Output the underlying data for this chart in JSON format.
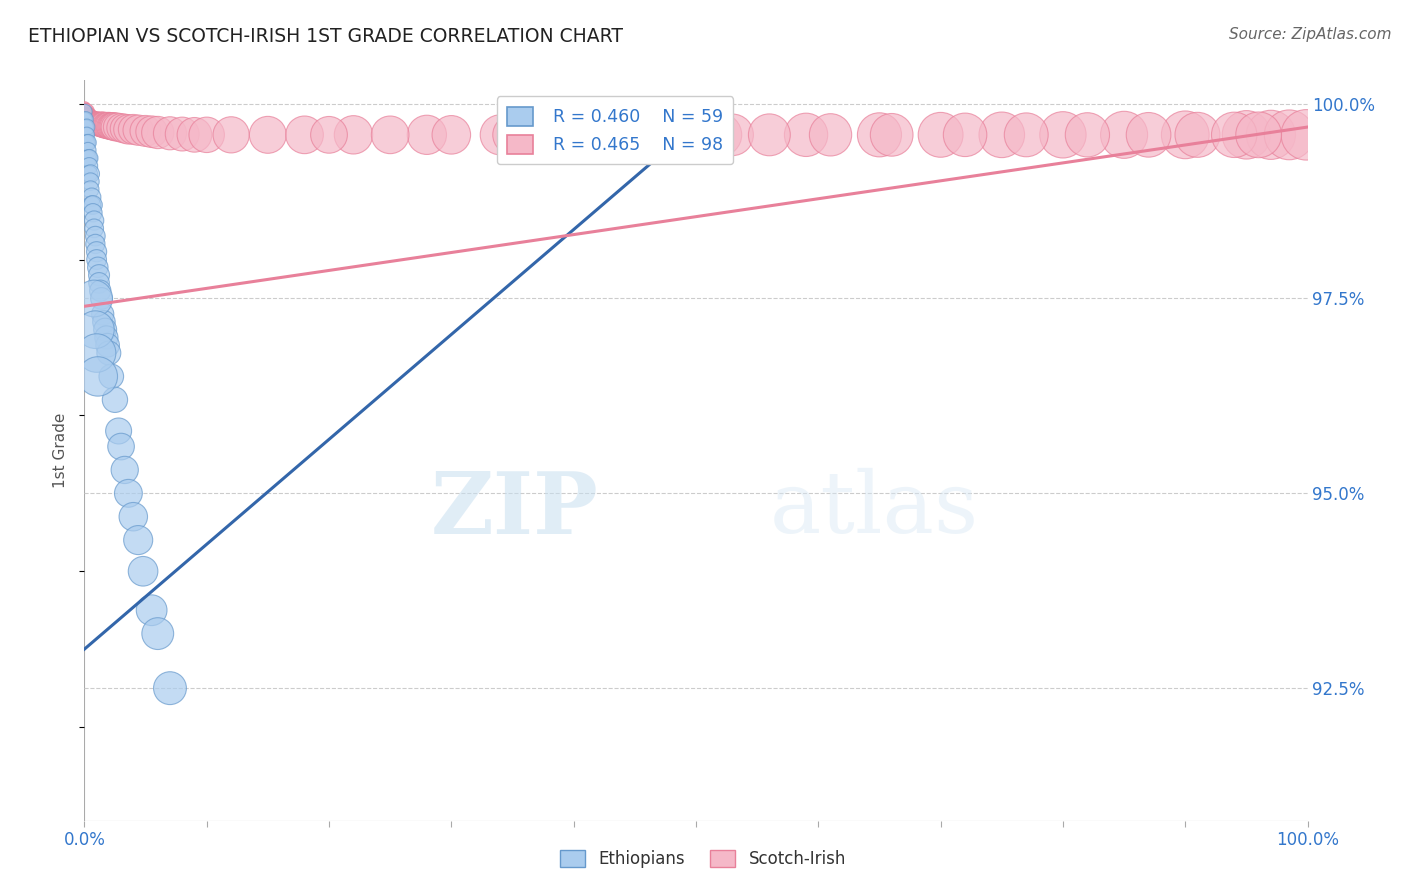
{
  "title": "ETHIOPIAN VS SCOTCH-IRISH 1ST GRADE CORRELATION CHART",
  "source": "Source: ZipAtlas.com",
  "ylabel": "1st Grade",
  "yaxis_labels": [
    "100.0%",
    "97.5%",
    "95.0%",
    "92.5%"
  ],
  "yaxis_values": [
    1.0,
    0.975,
    0.95,
    0.925
  ],
  "legend_blue_R": "R = 0.460",
  "legend_blue_N": "N = 59",
  "legend_pink_R": "R = 0.465",
  "legend_pink_N": "N = 98",
  "blue_color": "#aaccee",
  "pink_color": "#f5b8c8",
  "blue_edge": "#6699cc",
  "pink_edge": "#e8809a",
  "blue_line": "#3366aa",
  "pink_line": "#e8809a",
  "watermark_zip": "ZIP",
  "watermark_atlas": "atlas",
  "xlim": [
    0.0,
    1.0
  ],
  "ylim": [
    0.908,
    1.003
  ],
  "blue_trend_x": [
    0.0,
    0.52
  ],
  "blue_trend_y": [
    0.93,
    1.0
  ],
  "pink_trend_x": [
    0.0,
    1.0
  ],
  "pink_trend_y": [
    0.974,
    0.997
  ],
  "blue_points_x": [
    0.0005,
    0.0005,
    0.0008,
    0.001,
    0.001,
    0.001,
    0.0015,
    0.0015,
    0.002,
    0.002,
    0.002,
    0.0025,
    0.003,
    0.003,
    0.003,
    0.0035,
    0.004,
    0.004,
    0.004,
    0.005,
    0.005,
    0.005,
    0.006,
    0.006,
    0.007,
    0.007,
    0.008,
    0.008,
    0.009,
    0.009,
    0.01,
    0.01,
    0.011,
    0.012,
    0.012,
    0.013,
    0.014,
    0.015,
    0.016,
    0.017,
    0.018,
    0.019,
    0.02,
    0.022,
    0.025,
    0.028,
    0.03,
    0.033,
    0.036,
    0.04,
    0.044,
    0.048,
    0.055,
    0.06,
    0.07,
    0.008,
    0.009,
    0.01,
    0.011
  ],
  "blue_points_y": [
    0.999,
    0.998,
    0.998,
    0.998,
    0.997,
    0.996,
    0.997,
    0.996,
    0.997,
    0.996,
    0.995,
    0.995,
    0.995,
    0.994,
    0.993,
    0.993,
    0.993,
    0.992,
    0.991,
    0.991,
    0.99,
    0.989,
    0.988,
    0.987,
    0.987,
    0.986,
    0.985,
    0.984,
    0.983,
    0.982,
    0.981,
    0.98,
    0.979,
    0.978,
    0.977,
    0.976,
    0.975,
    0.973,
    0.972,
    0.971,
    0.97,
    0.969,
    0.968,
    0.965,
    0.962,
    0.958,
    0.956,
    0.953,
    0.95,
    0.947,
    0.944,
    0.94,
    0.935,
    0.932,
    0.925,
    0.975,
    0.971,
    0.968,
    0.965
  ],
  "blue_sizes": [
    30,
    25,
    28,
    35,
    30,
    28,
    32,
    30,
    38,
    35,
    32,
    36,
    40,
    38,
    35,
    42,
    45,
    42,
    40,
    48,
    45,
    43,
    50,
    48,
    52,
    50,
    55,
    52,
    57,
    55,
    60,
    58,
    62,
    65,
    63,
    67,
    70,
    73,
    75,
    78,
    80,
    83,
    85,
    90,
    95,
    100,
    105,
    110,
    115,
    120,
    125,
    130,
    140,
    150,
    160,
    200,
    210,
    220,
    230
  ],
  "pink_points_x": [
    0.0003,
    0.0005,
    0.0007,
    0.001,
    0.001,
    0.0015,
    0.0015,
    0.002,
    0.002,
    0.002,
    0.0025,
    0.003,
    0.003,
    0.003,
    0.004,
    0.004,
    0.005,
    0.005,
    0.005,
    0.006,
    0.006,
    0.007,
    0.007,
    0.008,
    0.008,
    0.009,
    0.009,
    0.01,
    0.01,
    0.011,
    0.011,
    0.012,
    0.013,
    0.013,
    0.014,
    0.015,
    0.015,
    0.016,
    0.017,
    0.018,
    0.019,
    0.02,
    0.021,
    0.022,
    0.023,
    0.024,
    0.025,
    0.027,
    0.03,
    0.033,
    0.036,
    0.04,
    0.044,
    0.05,
    0.055,
    0.06,
    0.07,
    0.08,
    0.09,
    0.1,
    0.12,
    0.15,
    0.18,
    0.22,
    0.28,
    0.34,
    0.4,
    0.46,
    0.52,
    0.59,
    0.65,
    0.7,
    0.75,
    0.8,
    0.85,
    0.9,
    0.95,
    0.97,
    0.985,
    0.999,
    0.2,
    0.25,
    0.3,
    0.35,
    0.38,
    0.42,
    0.48,
    0.53,
    0.56,
    0.61,
    0.66,
    0.72,
    0.77,
    0.82,
    0.87,
    0.91,
    0.94,
    0.96
  ],
  "pink_points_y": [
    0.9995,
    0.9993,
    0.9992,
    0.9992,
    0.999,
    0.999,
    0.9988,
    0.999,
    0.9987,
    0.9985,
    0.9985,
    0.9984,
    0.9983,
    0.9982,
    0.9982,
    0.9981,
    0.998,
    0.9979,
    0.9978,
    0.9978,
    0.9977,
    0.9977,
    0.9976,
    0.9976,
    0.9975,
    0.9975,
    0.9975,
    0.9975,
    0.9974,
    0.9974,
    0.9974,
    0.9974,
    0.9974,
    0.9973,
    0.9973,
    0.9973,
    0.9973,
    0.9973,
    0.9972,
    0.9972,
    0.9972,
    0.9972,
    0.9971,
    0.9971,
    0.9971,
    0.9971,
    0.997,
    0.997,
    0.9969,
    0.9968,
    0.9967,
    0.9967,
    0.9966,
    0.9965,
    0.9964,
    0.9963,
    0.9962,
    0.9961,
    0.996,
    0.996,
    0.996,
    0.996,
    0.996,
    0.996,
    0.996,
    0.996,
    0.996,
    0.996,
    0.996,
    0.996,
    0.996,
    0.996,
    0.996,
    0.996,
    0.996,
    0.996,
    0.996,
    0.996,
    0.996,
    0.996,
    0.996,
    0.996,
    0.996,
    0.996,
    0.996,
    0.996,
    0.996,
    0.996,
    0.996,
    0.996,
    0.996,
    0.996,
    0.996,
    0.996,
    0.996,
    0.996,
    0.996,
    0.996
  ],
  "pink_sizes": [
    20,
    22,
    24,
    26,
    28,
    30,
    32,
    34,
    36,
    38,
    40,
    42,
    44,
    46,
    48,
    50,
    52,
    54,
    56,
    58,
    60,
    62,
    64,
    66,
    68,
    70,
    72,
    74,
    76,
    78,
    80,
    82,
    84,
    86,
    88,
    90,
    92,
    94,
    96,
    98,
    100,
    102,
    104,
    106,
    108,
    110,
    112,
    116,
    120,
    124,
    128,
    132,
    136,
    142,
    148,
    154,
    162,
    170,
    178,
    186,
    194,
    202,
    210,
    218,
    228,
    238,
    248,
    258,
    268,
    278,
    288,
    298,
    308,
    318,
    328,
    338,
    348,
    358,
    368,
    378,
    200,
    210,
    220,
    230,
    235,
    240,
    250,
    255,
    260,
    265,
    270,
    280,
    285,
    290,
    295,
    300,
    305,
    310
  ]
}
